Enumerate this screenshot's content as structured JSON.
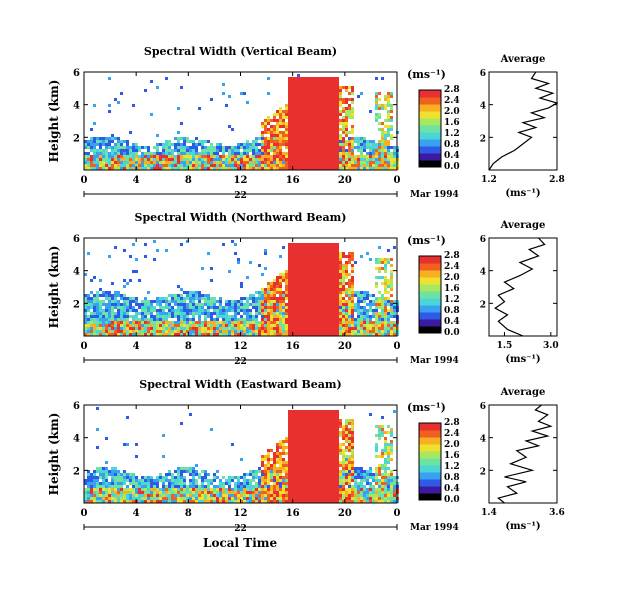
{
  "figure": {
    "bottom_label": "Local Time"
  },
  "colorbar_unit": "(ms⁻¹)",
  "chart_data": [
    {
      "type": "heatmap",
      "title": "Spectral Width (Vertical Beam)",
      "ylabel": "Height (km)",
      "y_ticks": [
        "2",
        "4",
        "6"
      ],
      "x_ticks": [
        "0",
        "4",
        "8",
        "12",
        "16",
        "20",
        "0"
      ],
      "xlim": [
        0,
        24
      ],
      "ylim": [
        0,
        6
      ],
      "day_label": "22",
      "date_label": "Mar 1994",
      "colorbar": {
        "ticks": [
          "0.0",
          "0.4",
          "0.8",
          "1.2",
          "1.6",
          "2.0",
          "2.4",
          "2.8"
        ]
      },
      "average": {
        "title": "Average",
        "xlabel": "(ms⁻¹)",
        "x_ticks": [
          "1.2",
          "2.8"
        ],
        "xlim": [
          1.2,
          2.8
        ],
        "y_ticks": [
          "2",
          "4",
          "6"
        ],
        "profile": [
          [
            1.2,
            0.0
          ],
          [
            1.3,
            0.4
          ],
          [
            1.5,
            0.8
          ],
          [
            1.8,
            1.2
          ],
          [
            2.0,
            1.6
          ],
          [
            2.2,
            2.0
          ],
          [
            1.9,
            2.3
          ],
          [
            2.3,
            2.6
          ],
          [
            2.0,
            2.9
          ],
          [
            2.5,
            3.2
          ],
          [
            2.2,
            3.5
          ],
          [
            2.6,
            3.8
          ],
          [
            2.8,
            4.1
          ],
          [
            2.4,
            4.4
          ],
          [
            2.7,
            4.7
          ],
          [
            2.3,
            5.0
          ],
          [
            2.6,
            5.3
          ],
          [
            2.2,
            5.6
          ],
          [
            2.3,
            6.0
          ]
        ]
      }
    },
    {
      "type": "heatmap",
      "title": "Spectral Width (Northward Beam)",
      "ylabel": "Height (km)",
      "y_ticks": [
        "2",
        "4",
        "6"
      ],
      "x_ticks": [
        "0",
        "4",
        "8",
        "12",
        "16",
        "20",
        "0"
      ],
      "xlim": [
        0,
        24
      ],
      "ylim": [
        0,
        6
      ],
      "day_label": "22",
      "date_label": "Mar 1994",
      "colorbar": {
        "ticks": [
          "0.0",
          "0.4",
          "0.8",
          "1.2",
          "1.6",
          "2.0",
          "2.4",
          "2.8"
        ]
      },
      "average": {
        "title": "Average",
        "xlabel": "(ms⁻¹)",
        "x_ticks": [
          "1.5",
          "3.0"
        ],
        "xlim": [
          1.0,
          3.2
        ],
        "y_ticks": [
          "2",
          "4",
          "6"
        ],
        "profile": [
          [
            2.1,
            0.0
          ],
          [
            1.6,
            0.4
          ],
          [
            1.3,
            0.9
          ],
          [
            1.6,
            1.3
          ],
          [
            1.2,
            1.7
          ],
          [
            1.5,
            2.1
          ],
          [
            1.3,
            2.5
          ],
          [
            1.8,
            2.9
          ],
          [
            1.5,
            3.3
          ],
          [
            2.0,
            3.7
          ],
          [
            2.4,
            4.1
          ],
          [
            2.0,
            4.5
          ],
          [
            2.6,
            4.9
          ],
          [
            2.3,
            5.3
          ],
          [
            2.8,
            5.6
          ],
          [
            2.6,
            6.0
          ]
        ]
      }
    },
    {
      "type": "heatmap",
      "title": "Spectral Width (Eastward Beam)",
      "ylabel": "Height (km)",
      "y_ticks": [
        "2",
        "4",
        "6"
      ],
      "x_ticks": [
        "0",
        "4",
        "8",
        "12",
        "16",
        "20",
        "0"
      ],
      "xlim": [
        0,
        24
      ],
      "ylim": [
        0,
        6
      ],
      "day_label": "22",
      "date_label": "Mar 1994",
      "colorbar": {
        "ticks": [
          "0.0",
          "0.4",
          "0.8",
          "1.2",
          "1.6",
          "2.0",
          "2.4",
          "2.8"
        ]
      },
      "average": {
        "title": "Average",
        "xlabel": "(ms⁻¹)",
        "x_ticks": [
          "1.4",
          "3.6"
        ],
        "xlim": [
          1.4,
          3.6
        ],
        "y_ticks": [
          "2",
          "4",
          "6"
        ],
        "profile": [
          [
            1.9,
            0.0
          ],
          [
            1.7,
            0.3
          ],
          [
            2.3,
            0.6
          ],
          [
            2.0,
            1.0
          ],
          [
            2.6,
            1.3
          ],
          [
            1.9,
            1.6
          ],
          [
            2.8,
            2.0
          ],
          [
            2.1,
            2.4
          ],
          [
            2.6,
            2.8
          ],
          [
            2.3,
            3.2
          ],
          [
            3.0,
            3.5
          ],
          [
            2.6,
            3.8
          ],
          [
            3.3,
            4.1
          ],
          [
            2.8,
            4.4
          ],
          [
            3.4,
            4.7
          ],
          [
            3.0,
            5.0
          ],
          [
            3.3,
            5.4
          ],
          [
            2.9,
            5.7
          ],
          [
            3.1,
            6.0
          ]
        ]
      }
    }
  ],
  "palette": [
    "#000000",
    "#3a1aa0",
    "#2e5ae6",
    "#39a2f0",
    "#4ad6d6",
    "#6ee2a2",
    "#a8e860",
    "#f0e030",
    "#f8b020",
    "#f06020",
    "#e83030"
  ]
}
